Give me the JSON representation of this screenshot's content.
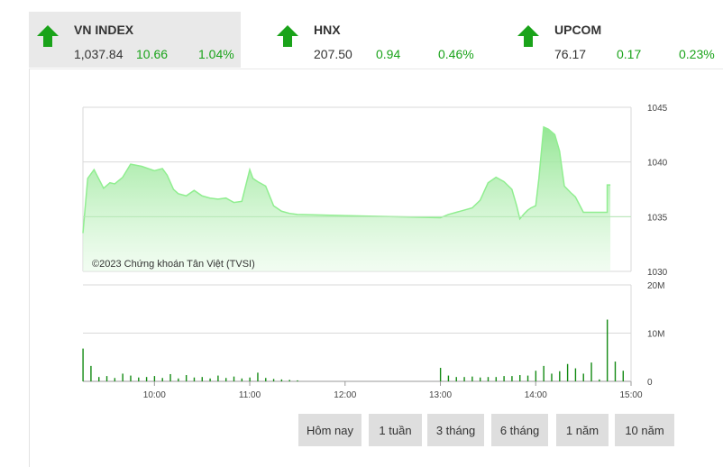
{
  "indices": [
    {
      "name": "VN INDEX",
      "value": "1,037.84",
      "change": "10.66",
      "percent": "1.04%",
      "direction": "up",
      "active": true
    },
    {
      "name": "HNX",
      "value": "207.50",
      "change": "0.94",
      "percent": "0.46%",
      "direction": "up",
      "active": false
    },
    {
      "name": "UPCOM",
      "value": "76.17",
      "change": "0.17",
      "percent": "0.23%",
      "direction": "up",
      "active": false
    }
  ],
  "colors": {
    "up": "#1aa31a",
    "line": "#90ee90",
    "volume": "#138a13",
    "grid": "#d9d9d9"
  },
  "chart": {
    "watermark": "©2023 Chứng khoán Tân Việt (TVSI)",
    "price_ticks": [
      "1045",
      "1040",
      "1035",
      "1030"
    ],
    "volume_ticks": [
      "20M",
      "10M",
      "0"
    ],
    "time_ticks": [
      "10:00",
      "11:00",
      "12:00",
      "13:00",
      "14:00",
      "15:00"
    ]
  },
  "chart_data": {
    "type": "area",
    "title": "",
    "price": {
      "ylim": [
        1030,
        1045
      ],
      "x": [
        "09:15",
        "09:18",
        "09:22",
        "09:28",
        "09:32",
        "09:35",
        "09:40",
        "09:45",
        "09:52",
        "10:00",
        "10:05",
        "10:08",
        "10:12",
        "10:15",
        "10:20",
        "10:25",
        "10:30",
        "10:35",
        "10:40",
        "10:45",
        "10:50",
        "10:55",
        "11:00",
        "11:02",
        "11:05",
        "11:10",
        "11:15",
        "11:20",
        "11:25",
        "11:30",
        "13:00",
        "13:05",
        "13:10",
        "13:20",
        "13:25",
        "13:30",
        "13:35",
        "13:40",
        "13:45",
        "13:48",
        "13:50",
        "13:53",
        "13:55",
        "13:57",
        "14:00",
        "14:02",
        "14:05",
        "14:08",
        "14:12",
        "14:15",
        "14:18",
        "14:22",
        "14:25",
        "14:30",
        "14:45",
        "14:45",
        "14:47"
      ],
      "values": [
        1033.5,
        1038.5,
        1039.3,
        1037.6,
        1038.1,
        1038.0,
        1038.6,
        1039.8,
        1039.6,
        1039.2,
        1039.4,
        1038.8,
        1037.5,
        1037.1,
        1036.9,
        1037.4,
        1036.9,
        1036.7,
        1036.6,
        1036.7,
        1036.3,
        1036.4,
        1039.3,
        1038.5,
        1038.2,
        1037.8,
        1036.0,
        1035.5,
        1035.3,
        1035.2,
        1034.9,
        1035.2,
        1035.4,
        1035.8,
        1036.5,
        1038.1,
        1038.6,
        1038.2,
        1037.5,
        1036.0,
        1034.8,
        1035.3,
        1035.6,
        1035.8,
        1036.0,
        1038.5,
        1043.2,
        1043.0,
        1042.5,
        1041.0,
        1037.8,
        1037.2,
        1036.8,
        1035.4,
        1035.4,
        1037.9,
        1037.9
      ]
    },
    "volume": {
      "ylim": [
        0,
        20000000
      ],
      "x": [
        "09:15",
        "09:20",
        "09:25",
        "09:30",
        "09:35",
        "09:40",
        "09:45",
        "09:50",
        "09:55",
        "10:00",
        "10:05",
        "10:10",
        "10:15",
        "10:20",
        "10:25",
        "10:30",
        "10:35",
        "10:40",
        "10:45",
        "10:50",
        "10:55",
        "11:00",
        "11:05",
        "11:10",
        "11:15",
        "11:20",
        "11:25",
        "11:30",
        "13:00",
        "13:05",
        "13:10",
        "13:15",
        "13:20",
        "13:25",
        "13:30",
        "13:35",
        "13:40",
        "13:45",
        "13:50",
        "13:55",
        "14:00",
        "14:05",
        "14:10",
        "14:15",
        "14:20",
        "14:25",
        "14:30",
        "14:35",
        "14:40",
        "14:45",
        "14:50",
        "14:55"
      ],
      "values": [
        6800000,
        3200000,
        900000,
        1100000,
        700000,
        1600000,
        1200000,
        800000,
        900000,
        1100000,
        700000,
        1500000,
        600000,
        1300000,
        800000,
        900000,
        600000,
        1200000,
        700000,
        1000000,
        600000,
        800000,
        1800000,
        700000,
        500000,
        400000,
        300000,
        200000,
        2800000,
        1200000,
        900000,
        900000,
        1000000,
        800000,
        900000,
        900000,
        1100000,
        1100000,
        1300000,
        1200000,
        2200000,
        3200000,
        1600000,
        2100000,
        3600000,
        2700000,
        1600000,
        3900000,
        400000,
        12800000,
        4100000,
        2200000
      ]
    }
  },
  "ranges": [
    "Hôm nay",
    "1 tuần",
    "3 tháng",
    "6 tháng",
    "1 năm",
    "10 năm"
  ],
  "selected_range": "Hôm nay"
}
